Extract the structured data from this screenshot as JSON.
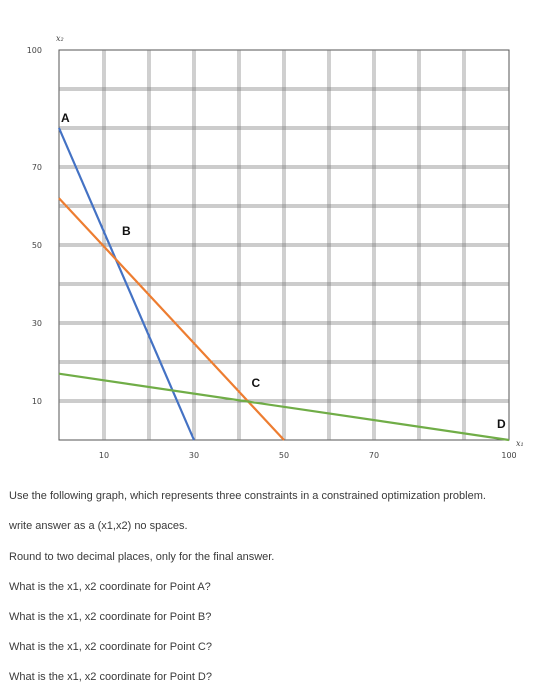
{
  "chart_data": {
    "type": "line",
    "title": "",
    "x_axis_label": "x₁",
    "y_axis_label": "x₂",
    "xlim": [
      0,
      100
    ],
    "ylim": [
      0,
      100
    ],
    "x_ticks": [
      10,
      30,
      50,
      70,
      100
    ],
    "y_ticks": [
      10,
      30,
      50,
      70,
      100
    ],
    "grid": true,
    "series": [
      {
        "color": "#4472C4",
        "x": [
          0,
          30
        ],
        "y": [
          80,
          0
        ]
      },
      {
        "color": "#ED7D31",
        "x": [
          0,
          50
        ],
        "y": [
          62,
          0
        ]
      },
      {
        "color": "#70AD47",
        "x": [
          0,
          100
        ],
        "y": [
          17,
          0
        ]
      }
    ],
    "points": [
      {
        "label": "A",
        "x": 0,
        "y": 80
      },
      {
        "label": "B",
        "x": 14,
        "y": 51
      },
      {
        "label": "C",
        "x": 41,
        "y": 12
      },
      {
        "label": "D",
        "x": 100,
        "y": 0
      }
    ]
  },
  "questions": {
    "intro": "Use the following graph, which represents three constraints in a constrained optimization problem.",
    "format": "write answer as a (x1,x2) no spaces.",
    "rounding": "Round to two decimal places, only for the final answer.",
    "q_a": "What is the x1, x2 coordinate for Point A?",
    "q_b": "What is the x1, x2 coordinate for Point B?",
    "q_c": "What is the x1, x2 coordinate for Point C?",
    "q_d": "What is the x1, x2 coordinate for Point D?"
  }
}
